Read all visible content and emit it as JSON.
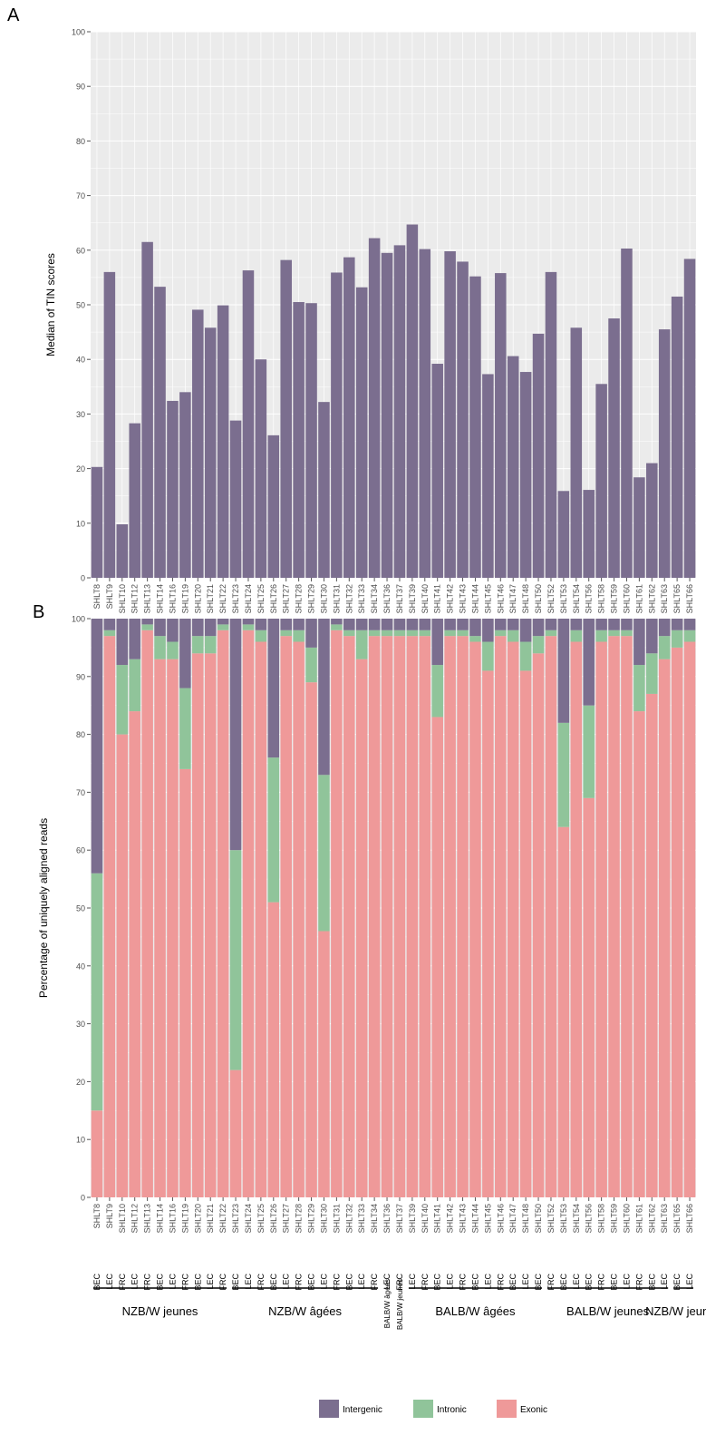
{
  "panel_a_label": "A",
  "panel_b_label": "B",
  "colors": {
    "intergenic": "#7b6e8f",
    "intronic": "#90c49a",
    "exonic": "#ef9999",
    "panel_bg": "#ebebeb",
    "grid": "#ffffff"
  },
  "chart_data": [
    {
      "type": "bar",
      "ylabel": "Median of TIN scores",
      "ylim": [
        0,
        100
      ],
      "yticks": [
        0,
        10,
        20,
        30,
        40,
        50,
        60,
        70,
        80,
        90,
        100
      ],
      "grid": true,
      "categories": [
        "SHLT8",
        "SHLT9",
        "SHLT10",
        "SHLT12",
        "SHLT13",
        "SHLT14",
        "SHLT16",
        "SHLT19",
        "SHLT20",
        "SHLT21",
        "SHLT22",
        "SHLT23",
        "SHLT24",
        "SHLT25",
        "SHLT26",
        "SHLT27",
        "SHLT28",
        "SHLT29",
        "SHLT30",
        "SHLT31",
        "SHLT32",
        "SHLT33",
        "SHLT34",
        "SHLT36",
        "SHLT37",
        "SHLT39",
        "SHLT40",
        "SHLT41",
        "SHLT42",
        "SHLT43",
        "SHLT44",
        "SHLT45",
        "SHLT46",
        "SHLT47",
        "SHLT48",
        "SHLT50",
        "SHLT52",
        "SHLT53",
        "SHLT54",
        "SHLT56",
        "SHLT58",
        "SHLT59",
        "SHLT60",
        "SHLT61",
        "SHLT62",
        "SHLT63",
        "SHLT65",
        "SHLT66"
      ],
      "values": [
        20.3,
        56,
        9.8,
        28.3,
        61.5,
        53.3,
        32.4,
        34,
        49.1,
        45.8,
        49.9,
        28.8,
        56.3,
        40,
        26.1,
        58.2,
        50.5,
        50.3,
        32.2,
        55.9,
        58.7,
        53.2,
        62.2,
        59.5,
        60.9,
        64.7,
        60.2,
        39.2,
        59.8,
        57.9,
        55.2,
        37.3,
        55.8,
        40.6,
        37.7,
        44.7,
        56,
        15.9,
        45.8,
        16.1,
        35.5,
        47.5,
        60.3,
        18.4,
        21,
        45.5,
        51.5,
        58.4
      ]
    },
    {
      "type": "bar",
      "stacked": true,
      "ylabel": "Percentage of uniquely aligned reads",
      "ylim": [
        0,
        100
      ],
      "yticks": [
        0,
        10,
        20,
        30,
        40,
        50,
        60,
        70,
        80,
        90,
        100
      ],
      "grid": true,
      "categories": [
        "SHLT8",
        "SHLT9",
        "SHLT10",
        "SHLT12",
        "SHLT13",
        "SHLT14",
        "SHLT16",
        "SHLT19",
        "SHLT20",
        "SHLT21",
        "SHLT22",
        "SHLT23",
        "SHLT24",
        "SHLT25",
        "SHLT26",
        "SHLT27",
        "SHLT28",
        "SHLT29",
        "SHLT30",
        "SHLT31",
        "SHLT32",
        "SHLT33",
        "SHLT34",
        "SHLT36",
        "SHLT37",
        "SHLT39",
        "SHLT40",
        "SHLT41",
        "SHLT42",
        "SHLT43",
        "SHLT44",
        "SHLT45",
        "SHLT46",
        "SHLT47",
        "SHLT48",
        "SHLT50",
        "SHLT52",
        "SHLT53",
        "SHLT54",
        "SHLT56",
        "SHLT58",
        "SHLT59",
        "SHLT60",
        "SHLT61",
        "SHLT62",
        "SHLT63",
        "SHLT65",
        "SHLT66"
      ],
      "cell_types": [
        "BEC",
        "LEC",
        "FRC",
        "LEC",
        "FRC",
        "BEC",
        "LEC",
        "FRC",
        "BEC",
        "LEC",
        "FRC",
        "BEC",
        "LEC",
        "FRC",
        "BEC",
        "LEC",
        "FRC",
        "BEC",
        "LEC",
        "FRC",
        "BEC",
        "LEC",
        "FRC",
        "LEC",
        "FRC",
        "LEC",
        "FRC",
        "BEC",
        "LEC",
        "FRC",
        "BEC",
        "LEC",
        "FRC",
        "BEC",
        "LEC",
        "BEC",
        "FRC",
        "BEC",
        "LEC",
        "BEC",
        "FRC",
        "BEC",
        "LEC",
        "FRC",
        "BEC",
        "LEC",
        "BEC",
        "LEC"
      ],
      "series": [
        {
          "name": "Exonic",
          "values": [
            15,
            97,
            80,
            84,
            98,
            93,
            93,
            74,
            94,
            94,
            98,
            22,
            98,
            96,
            51,
            97,
            96,
            89,
            46,
            98,
            97,
            93,
            97,
            97,
            97,
            97,
            97,
            83,
            97,
            97,
            96,
            91,
            97,
            96,
            91,
            94,
            97,
            64,
            96,
            69,
            96,
            97,
            97,
            84,
            87,
            93,
            95,
            96
          ]
        },
        {
          "name": "Intronic",
          "values": [
            41,
            1,
            12,
            9,
            1,
            4,
            3,
            14,
            3,
            3,
            1,
            38,
            1,
            2,
            25,
            1,
            2,
            6,
            27,
            1,
            1,
            5,
            1,
            1,
            1,
            1,
            1,
            9,
            1,
            1,
            1,
            5,
            1,
            2,
            5,
            3,
            1,
            18,
            2,
            16,
            2,
            1,
            1,
            8,
            7,
            4,
            3,
            2
          ]
        },
        {
          "name": "Intergenic",
          "values": [
            44,
            2,
            8,
            7,
            1,
            3,
            4,
            12,
            3,
            3,
            1,
            40,
            1,
            2,
            24,
            2,
            2,
            5,
            27,
            1,
            2,
            2,
            2,
            2,
            2,
            2,
            2,
            8,
            2,
            2,
            3,
            4,
            2,
            2,
            4,
            3,
            2,
            18,
            2,
            15,
            2,
            2,
            2,
            8,
            6,
            3,
            2,
            2
          ]
        }
      ],
      "groups": [
        {
          "label": "NZB/W jeunes",
          "start": 0,
          "end": 10
        },
        {
          "label": "NZB/W âgées",
          "start": 11,
          "end": 22
        },
        {
          "label": "BALB/W âgées",
          "start": 23,
          "end": 23
        },
        {
          "label": "BALB/W jeunes",
          "start": 24,
          "end": 24
        },
        {
          "label": "BALB/W âgées",
          "start": 25,
          "end": 35
        },
        {
          "label": "BALB/W jeunes",
          "start": 36,
          "end": 45
        },
        {
          "label": "NZB/W jeunes",
          "start": 46,
          "end": 47
        }
      ],
      "legend_position": "bottom"
    }
  ]
}
